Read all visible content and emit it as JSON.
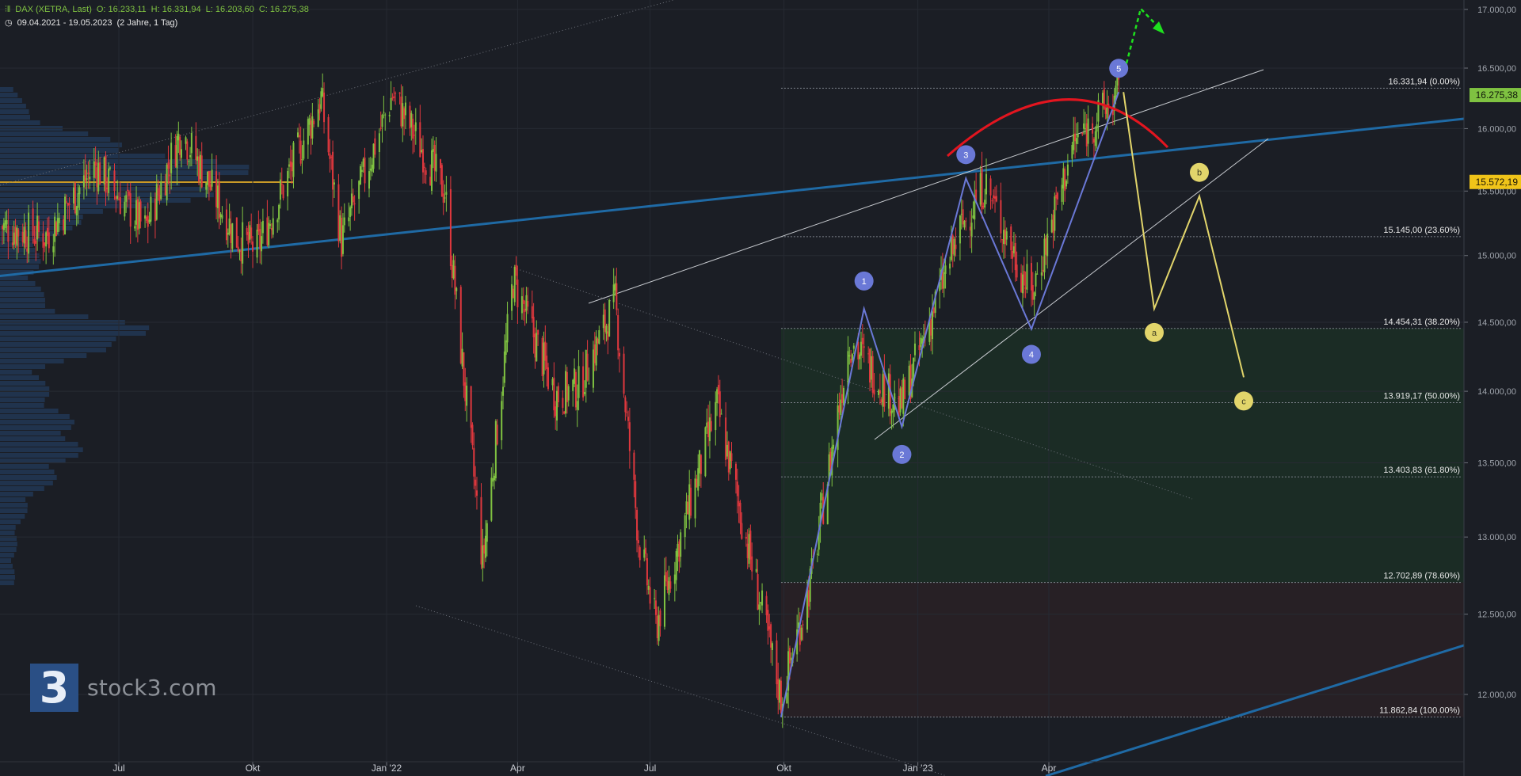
{
  "header": {
    "symbol_icon": "candlestick-icon",
    "instrument": "DAX (XETRA, Last)",
    "open": "O: 16.233,11",
    "high": "H: 16.331,94",
    "low": "L: 16.203,60",
    "close": "C: 16.275,38",
    "clock_icon": "clock-icon",
    "date_range": "09.04.2021 - 19.05.2023",
    "period": "(2 Jahre, 1 Tag)"
  },
  "logo": {
    "icon": "stock3-logo-icon",
    "glyph": "3",
    "text": "stock3.com"
  },
  "colors": {
    "background": "#1b1e25",
    "candle_up": "#7fc241",
    "candle_down": "#e0383e",
    "trend_line": "#1f6aa5",
    "wave_line": "#6a78d6",
    "projection": "#e2d56b",
    "arc": "#e3151f",
    "breakout": "#1ee11e",
    "last_price_bg": "#7fc241",
    "marker_price_bg": "#f0c419",
    "zone_green": "#1c3125",
    "zone_red": "#2c2126"
  },
  "chart_data": {
    "type": "candlestick",
    "title": "DAX (XETRA, Last)",
    "x_range": [
      "2021-04-09",
      "2023-05-19"
    ],
    "x_ticks": [
      "Jul",
      "Okt",
      "Jan '22",
      "Apr",
      "Jul",
      "Okt",
      "Jan '23",
      "Apr"
    ],
    "y_ticks": [
      "12.000,00",
      "12.500,00",
      "13.000,00",
      "13.500,00",
      "14.000,00",
      "14.500,00",
      "15.000,00",
      "15.500,00",
      "16.000,00",
      "16.500,00",
      "17.000,00"
    ],
    "ylim": [
      11400,
      17080
    ],
    "y_scale": "log",
    "last_price": "16.275,38",
    "marker_price": "15.572,19",
    "close_path": [
      [
        "2021-04-09",
        15230
      ],
      [
        "2021-05-12",
        15150
      ],
      [
        "2021-06-15",
        15700
      ],
      [
        "2021-07-19",
        15200
      ],
      [
        "2021-08-13",
        15990
      ],
      [
        "2021-09-20",
        15130
      ],
      [
        "2021-10-04",
        15050
      ],
      [
        "2021-11-17",
        16250
      ],
      [
        "2021-12-01",
        15110
      ],
      [
        "2022-01-05",
        16280
      ],
      [
        "2022-02-10",
        15500
      ],
      [
        "2022-03-08",
        12830
      ],
      [
        "2022-03-29",
        14820
      ],
      [
        "2022-04-27",
        13970
      ],
      [
        "2022-05-13",
        14030
      ],
      [
        "2022-06-07",
        14650
      ],
      [
        "2022-06-23",
        13000
      ],
      [
        "2022-07-05",
        12420
      ],
      [
        "2022-08-16",
        13900
      ],
      [
        "2022-09-29",
        11975
      ],
      [
        "2022-10-20",
        12740
      ],
      [
        "2022-11-15",
        14370
      ],
      [
        "2022-12-20",
        13880
      ],
      [
        "2023-01-30",
        15200
      ],
      [
        "2023-02-16",
        15560
      ],
      [
        "2023-03-20",
        14700
      ],
      [
        "2023-04-18",
        15880
      ],
      [
        "2023-05-19",
        16275
      ]
    ],
    "fibonacci": [
      {
        "label": "16.331,94 (0.00%)",
        "value": 16331.94
      },
      {
        "label": "15.145,00 (23.60%)",
        "value": 15145.0
      },
      {
        "label": "14.454,31 (38.20%)",
        "value": 14454.31
      },
      {
        "label": "13.919,17 (50.00%)",
        "value": 13919.17
      },
      {
        "label": "13.403,83 (61.80%)",
        "value": 13403.83
      },
      {
        "label": "12.702,89 (78.60%)",
        "value": 12702.89
      },
      {
        "label": "11.862,84 (100.00%)",
        "value": 11862.84
      }
    ],
    "elliott_waves": [
      {
        "label": "1",
        "date": "2022-11-25",
        "value": 14600
      },
      {
        "label": "2",
        "date": "2022-12-21",
        "value": 13750
      },
      {
        "label": "3",
        "date": "2023-02-03",
        "value": 15600
      },
      {
        "label": "4",
        "date": "2023-03-20",
        "value": 14450
      },
      {
        "label": "5",
        "date": "2023-05-19",
        "value": 16300
      }
    ],
    "abc_projection": [
      {
        "label": "a",
        "value": 14600
      },
      {
        "label": "b",
        "value": 15460
      },
      {
        "label": "c",
        "value": 14100
      }
    ],
    "volume_profile": "left-side horizontal histogram",
    "grid": true
  }
}
